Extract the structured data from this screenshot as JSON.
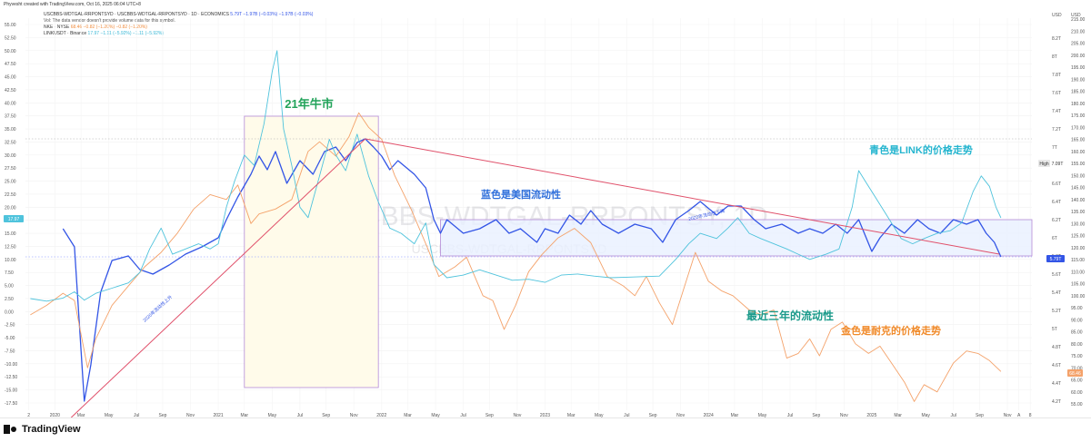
{
  "header": {
    "created": "Phyvesht created with TradingView.com, Oct 16, 2025 06:04 UTC+8"
  },
  "legend": {
    "line1": "USCBBS-WDTGAL-RRPONTSYD · USCBBS-WDTGAL-RRPONTSYD · 1D · ECONOMICS",
    "line1_vals": "5.79T −1.97B (−0.03%) −1.97B (−0.03%)",
    "line2": "Vol: The data vendor doesn't provide volume data for this symbol.",
    "line3": "NKE · NYSE",
    "line3_vals": "68.46 −0.82 (−1.20%) −0.82 (−1.20%)",
    "line4": "LINKUSDT · Binance",
    "line4_vals": "17.97 −1.11 (−5.92%) −1.11 (−5.92%)"
  },
  "branding": {
    "logo_text": "TradingView",
    "logo_icon": "tradingview-logo-icon"
  },
  "colors": {
    "blue": "#3355e6",
    "cyan": "#4fc3dc",
    "orange": "#f4a26a",
    "trend": "#e0506a",
    "box_purple": "#b48ad6",
    "box_fill": "#fffbea",
    "range_fill": "#e9f0ff",
    "annot_green": "#22a35a",
    "annot_blue": "#2f6fdb",
    "annot_teal": "#1a9a8a",
    "annot_orange": "#f08a2a",
    "annot_cyan": "#25b5cf"
  },
  "chart_data": {
    "type": "line",
    "watermark": "USCBBS-WDTGAL-RRPONTSY, 1D",
    "watermark_sub": "USCBBS-WDTGAL-RRPONTSYD",
    "x_ticks": [
      "2",
      "2020",
      "Mar",
      "May",
      "Jul",
      "Sep",
      "Nov",
      "2021",
      "Mar",
      "May",
      "Jul",
      "Sep",
      "Nov",
      "2022",
      "Mar",
      "May",
      "Jul",
      "Sep",
      "Nov",
      "2023",
      "Mar",
      "May",
      "Jul",
      "Sep",
      "Nov",
      "2024",
      "Mar",
      "May",
      "Jul",
      "Sep",
      "Nov",
      "2025",
      "Mar",
      "May",
      "Jul",
      "Sep",
      "Nov",
      "A",
      "8"
    ],
    "left_axis_ticks": [
      "55.00",
      "52.50",
      "50.00",
      "47.50",
      "45.00",
      "42.50",
      "40.00",
      "37.50",
      "35.00",
      "32.50",
      "30.00",
      "27.50",
      "25.00",
      "22.50",
      "20.00",
      "17.50",
      "15.00",
      "12.50",
      "10.00",
      "7.50",
      "5.00",
      "2.50",
      "0.00",
      "-2.50",
      "-5.00",
      "-7.50",
      "-10.00",
      "-12.50",
      "-15.00",
      "-17.50"
    ],
    "right_axis_1_label": "USD",
    "right_axis_1_ticks": [
      "8.2T",
      "8T",
      "7.8T",
      "7.6T",
      "7.4T",
      "7.2T",
      "7T",
      "6.8T",
      "6.6T",
      "6.4T",
      "6.2T",
      "6T",
      "5.8T",
      "5.6T",
      "5.4T",
      "5.2T",
      "5T",
      "4.8T",
      "4.6T",
      "4.4T",
      "4.2T"
    ],
    "right_axis_2_label": "USD",
    "right_axis_2_ticks": [
      "215.00",
      "210.00",
      "205.00",
      "200.00",
      "195.00",
      "190.00",
      "185.00",
      "180.00",
      "175.00",
      "170.00",
      "165.00",
      "160.00",
      "155.00",
      "150.00",
      "145.00",
      "140.00",
      "135.00",
      "130.00",
      "125.00",
      "120.00",
      "115.00",
      "110.00",
      "105.00",
      "100.00",
      "95.00",
      "90.00",
      "85.00",
      "80.00",
      "75.00",
      "70.00",
      "65.00",
      "60.00",
      "55.00"
    ],
    "badges": {
      "left_last": "17.97",
      "right_last": "5.79T",
      "high_label": "High",
      "high_value": "7.09T",
      "orange_last": "68.46"
    },
    "series": [
      {
        "name": "USCBBS-WDTGAL-RRPONTSYD",
        "axis": "liquidity_T",
        "color_key": "blue",
        "points": [
          [
            2020.05,
            6.1
          ],
          [
            2020.12,
            5.9
          ],
          [
            2020.18,
            4.2
          ],
          [
            2020.22,
            4.6
          ],
          [
            2020.28,
            5.4
          ],
          [
            2020.35,
            5.75
          ],
          [
            2020.45,
            5.8
          ],
          [
            2020.52,
            5.65
          ],
          [
            2020.6,
            5.6
          ],
          [
            2020.7,
            5.7
          ],
          [
            2020.8,
            5.82
          ],
          [
            2020.9,
            5.9
          ],
          [
            2021.0,
            6.0
          ],
          [
            2021.05,
            6.2
          ],
          [
            2021.12,
            6.45
          ],
          [
            2021.2,
            6.7
          ],
          [
            2021.25,
            6.9
          ],
          [
            2021.3,
            6.75
          ],
          [
            2021.35,
            6.95
          ],
          [
            2021.42,
            6.6
          ],
          [
            2021.5,
            6.85
          ],
          [
            2021.58,
            6.7
          ],
          [
            2021.65,
            6.95
          ],
          [
            2021.72,
            7.0
          ],
          [
            2021.78,
            6.85
          ],
          [
            2021.85,
            7.05
          ],
          [
            2021.9,
            7.09
          ],
          [
            2021.95,
            7.0
          ],
          [
            2022.0,
            6.9
          ],
          [
            2022.05,
            6.75
          ],
          [
            2022.1,
            6.85
          ],
          [
            2022.2,
            6.7
          ],
          [
            2022.27,
            6.55
          ],
          [
            2022.32,
            6.2
          ],
          [
            2022.36,
            6.05
          ],
          [
            2022.4,
            6.2
          ],
          [
            2022.5,
            6.05
          ],
          [
            2022.6,
            6.1
          ],
          [
            2022.7,
            6.2
          ],
          [
            2022.78,
            6.05
          ],
          [
            2022.85,
            6.1
          ],
          [
            2022.95,
            5.95
          ],
          [
            2023.0,
            6.1
          ],
          [
            2023.08,
            6.05
          ],
          [
            2023.15,
            6.25
          ],
          [
            2023.22,
            6.15
          ],
          [
            2023.28,
            6.3
          ],
          [
            2023.35,
            6.15
          ],
          [
            2023.45,
            6.05
          ],
          [
            2023.55,
            6.15
          ],
          [
            2023.65,
            6.1
          ],
          [
            2023.72,
            5.95
          ],
          [
            2023.8,
            6.2
          ],
          [
            2023.88,
            6.3
          ],
          [
            2023.95,
            6.4
          ],
          [
            2024.05,
            6.25
          ],
          [
            2024.12,
            6.35
          ],
          [
            2024.2,
            6.35
          ],
          [
            2024.28,
            6.2
          ],
          [
            2024.35,
            6.1
          ],
          [
            2024.45,
            6.15
          ],
          [
            2024.55,
            6.05
          ],
          [
            2024.62,
            6.1
          ],
          [
            2024.7,
            6.05
          ],
          [
            2024.78,
            6.15
          ],
          [
            2024.85,
            6.05
          ],
          [
            2024.92,
            6.2
          ],
          [
            2025.0,
            5.85
          ],
          [
            2025.05,
            6.0
          ],
          [
            2025.12,
            6.15
          ],
          [
            2025.2,
            6.05
          ],
          [
            2025.28,
            6.2
          ],
          [
            2025.35,
            6.1
          ],
          [
            2025.42,
            6.05
          ],
          [
            2025.5,
            6.2
          ],
          [
            2025.58,
            6.15
          ],
          [
            2025.65,
            6.2
          ],
          [
            2025.7,
            6.05
          ],
          [
            2025.75,
            5.95
          ],
          [
            2025.79,
            5.79
          ]
        ]
      },
      {
        "name": "NKE · NYSE",
        "axis": "usd_right",
        "color_key": "orange",
        "points": [
          [
            2019.85,
            92
          ],
          [
            2019.95,
            96
          ],
          [
            2020.05,
            101
          ],
          [
            2020.12,
            98
          ],
          [
            2020.2,
            70
          ],
          [
            2020.25,
            82
          ],
          [
            2020.35,
            96
          ],
          [
            2020.45,
            104
          ],
          [
            2020.55,
            112
          ],
          [
            2020.65,
            118
          ],
          [
            2020.75,
            126
          ],
          [
            2020.85,
            136
          ],
          [
            2020.95,
            142
          ],
          [
            2021.05,
            140
          ],
          [
            2021.12,
            146
          ],
          [
            2021.2,
            130
          ],
          [
            2021.25,
            134
          ],
          [
            2021.35,
            136
          ],
          [
            2021.45,
            140
          ],
          [
            2021.55,
            160
          ],
          [
            2021.62,
            164
          ],
          [
            2021.72,
            158
          ],
          [
            2021.8,
            166
          ],
          [
            2021.86,
            176
          ],
          [
            2021.92,
            170
          ],
          [
            2022.0,
            165
          ],
          [
            2022.08,
            150
          ],
          [
            2022.18,
            136
          ],
          [
            2022.28,
            120
          ],
          [
            2022.35,
            108
          ],
          [
            2022.45,
            112
          ],
          [
            2022.52,
            116
          ],
          [
            2022.62,
            100
          ],
          [
            2022.68,
            98
          ],
          [
            2022.75,
            86
          ],
          [
            2022.82,
            96
          ],
          [
            2022.9,
            110
          ],
          [
            2022.98,
            117
          ],
          [
            2023.08,
            124
          ],
          [
            2023.18,
            128
          ],
          [
            2023.28,
            122
          ],
          [
            2023.38,
            108
          ],
          [
            2023.48,
            104
          ],
          [
            2023.55,
            100
          ],
          [
            2023.62,
            108
          ],
          [
            2023.7,
            97
          ],
          [
            2023.78,
            88
          ],
          [
            2023.85,
            103
          ],
          [
            2023.92,
            118
          ],
          [
            2024.0,
            106
          ],
          [
            2024.08,
            102
          ],
          [
            2024.15,
            100
          ],
          [
            2024.25,
            94
          ],
          [
            2024.32,
            92
          ],
          [
            2024.4,
            94
          ],
          [
            2024.48,
            74
          ],
          [
            2024.55,
            76
          ],
          [
            2024.62,
            82
          ],
          [
            2024.68,
            75
          ],
          [
            2024.75,
            86
          ],
          [
            2024.82,
            89
          ],
          [
            2024.9,
            80
          ],
          [
            2024.98,
            76
          ],
          [
            2025.05,
            79
          ],
          [
            2025.12,
            72
          ],
          [
            2025.2,
            64
          ],
          [
            2025.26,
            56
          ],
          [
            2025.32,
            63
          ],
          [
            2025.4,
            60
          ],
          [
            2025.5,
            72
          ],
          [
            2025.58,
            77
          ],
          [
            2025.65,
            76
          ],
          [
            2025.72,
            73
          ],
          [
            2025.79,
            68.46
          ]
        ]
      },
      {
        "name": "LINKUSDT · Binance",
        "axis": "usd_left",
        "color_key": "cyan",
        "points": [
          [
            2019.85,
            2.5
          ],
          [
            2019.95,
            2.0
          ],
          [
            2020.05,
            2.6
          ],
          [
            2020.12,
            3.8
          ],
          [
            2020.18,
            2.2
          ],
          [
            2020.25,
            3.5
          ],
          [
            2020.35,
            4.5
          ],
          [
            2020.45,
            5.5
          ],
          [
            2020.52,
            7.5
          ],
          [
            2020.58,
            12
          ],
          [
            2020.65,
            16
          ],
          [
            2020.72,
            11
          ],
          [
            2020.8,
            12
          ],
          [
            2020.88,
            13
          ],
          [
            2020.95,
            12
          ],
          [
            2021.0,
            13
          ],
          [
            2021.05,
            20
          ],
          [
            2021.1,
            25
          ],
          [
            2021.16,
            30
          ],
          [
            2021.22,
            28
          ],
          [
            2021.28,
            36
          ],
          [
            2021.33,
            46
          ],
          [
            2021.36,
            50
          ],
          [
            2021.4,
            35
          ],
          [
            2021.45,
            28
          ],
          [
            2021.5,
            20
          ],
          [
            2021.55,
            18
          ],
          [
            2021.62,
            26
          ],
          [
            2021.68,
            33
          ],
          [
            2021.72,
            30
          ],
          [
            2021.78,
            27
          ],
          [
            2021.85,
            34
          ],
          [
            2021.92,
            26
          ],
          [
            2021.98,
            21
          ],
          [
            2022.05,
            16
          ],
          [
            2022.12,
            15
          ],
          [
            2022.2,
            13
          ],
          [
            2022.27,
            17
          ],
          [
            2022.32,
            9
          ],
          [
            2022.4,
            6.5
          ],
          [
            2022.5,
            7
          ],
          [
            2022.6,
            8
          ],
          [
            2022.7,
            7
          ],
          [
            2022.8,
            6
          ],
          [
            2022.9,
            6.2
          ],
          [
            2023.0,
            5.6
          ],
          [
            2023.1,
            7
          ],
          [
            2023.2,
            7.2
          ],
          [
            2023.3,
            6.8
          ],
          [
            2023.4,
            6.5
          ],
          [
            2023.5,
            6.6
          ],
          [
            2023.6,
            6.7
          ],
          [
            2023.7,
            6.8
          ],
          [
            2023.8,
            10
          ],
          [
            2023.88,
            13
          ],
          [
            2023.95,
            15
          ],
          [
            2024.05,
            14
          ],
          [
            2024.12,
            16
          ],
          [
            2024.18,
            18
          ],
          [
            2024.25,
            15
          ],
          [
            2024.32,
            14
          ],
          [
            2024.4,
            13
          ],
          [
            2024.48,
            12
          ],
          [
            2024.55,
            11
          ],
          [
            2024.62,
            10
          ],
          [
            2024.72,
            11
          ],
          [
            2024.8,
            12
          ],
          [
            2024.88,
            20
          ],
          [
            2024.92,
            27
          ],
          [
            2024.96,
            25
          ],
          [
            2025.02,
            22
          ],
          [
            2025.1,
            18
          ],
          [
            2025.18,
            14
          ],
          [
            2025.25,
            13
          ],
          [
            2025.32,
            14
          ],
          [
            2025.4,
            15
          ],
          [
            2025.48,
            15.5
          ],
          [
            2025.55,
            17
          ],
          [
            2025.62,
            23
          ],
          [
            2025.67,
            26
          ],
          [
            2025.72,
            24
          ],
          [
            2025.76,
            20
          ],
          [
            2025.79,
            17.97
          ]
        ]
      }
    ],
    "annotations": {
      "bull_2021": "21年牛市",
      "blue_meaning": "蓝色是美国流动性",
      "cyan_meaning": "青色是LINK的价格走势",
      "recent_liquidity": "最近三年的流动性",
      "gold_meaning": "金色是耐克的价格走势",
      "trend_up_label": "2020年流动性上升",
      "trend_down_label": "2022年流动性下降"
    },
    "grid": true
  }
}
